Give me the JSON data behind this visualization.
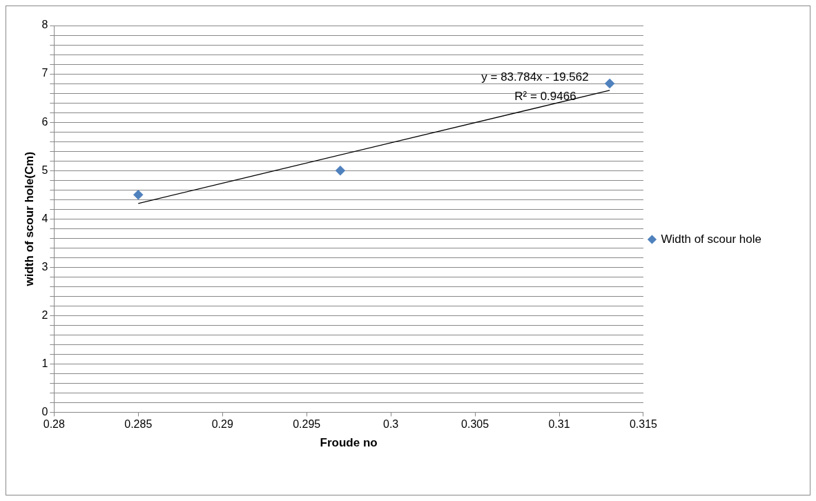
{
  "chart_data": {
    "type": "scatter",
    "xlabel": "Froude no",
    "ylabel": "width of scour hole(Cm)",
    "series": [
      {
        "name": "Width of scour hole",
        "type": "scatter",
        "color": "#4f81bd",
        "x": [
          0.285,
          0.297,
          0.313
        ],
        "values": [
          4.5,
          5.0,
          6.8
        ],
        "marker": "diamond"
      },
      {
        "type": "line",
        "color": "#000000",
        "x": [
          0.285,
          0.313
        ],
        "values": [
          4.32,
          6.66
        ],
        "marker": "none"
      }
    ],
    "xlim": [
      0.28,
      0.315
    ],
    "xticks": [
      0.28,
      0.285,
      0.29,
      0.295,
      0.3,
      0.305,
      0.31,
      0.315
    ],
    "ylim": [
      0,
      8
    ],
    "yticks": [
      0,
      {
        "value": 0.2,
        "label": null
      },
      {
        "value": 0.4,
        "label": null
      },
      {
        "value": 0.6,
        "label": null
      },
      {
        "value": 0.8,
        "label": null
      },
      1,
      {
        "value": 1.2,
        "label": null
      },
      {
        "value": 1.4,
        "label": null
      },
      {
        "value": 1.6,
        "label": null
      },
      {
        "value": 1.8,
        "label": null
      },
      2,
      {
        "value": 2.2,
        "label": null
      },
      {
        "value": 2.4,
        "label": null
      },
      {
        "value": 2.6,
        "label": null
      },
      {
        "value": 2.8,
        "label": null
      },
      3,
      {
        "value": 3.2,
        "label": null
      },
      {
        "value": 3.4,
        "label": null
      },
      {
        "value": 3.6,
        "label": null
      },
      {
        "value": 3.8,
        "label": null
      },
      4,
      {
        "value": 4.2,
        "label": null
      },
      {
        "value": 4.4,
        "label": null
      },
      {
        "value": 4.6,
        "label": null
      },
      {
        "value": 4.8,
        "label": null
      },
      5,
      {
        "value": 5.2,
        "label": null
      },
      {
        "value": 5.4,
        "label": null
      },
      {
        "value": 5.6,
        "label": null
      },
      {
        "value": 5.8,
        "label": null
      },
      6,
      {
        "value": 6.2,
        "label": null
      },
      {
        "value": 6.4,
        "label": null
      },
      {
        "value": 6.6,
        "label": null
      },
      {
        "value": 6.8,
        "label": null
      },
      7,
      {
        "value": 7.2,
        "label": null
      },
      {
        "value": 7.4,
        "label": null
      },
      {
        "value": 7.6,
        "label": null
      },
      {
        "value": 7.8,
        "label": null
      },
      8
    ],
    "annotations": [
      "y = 83.784x - 19.562",
      "R² = 0.9466"
    ],
    "grid": "y",
    "legend": "right"
  }
}
